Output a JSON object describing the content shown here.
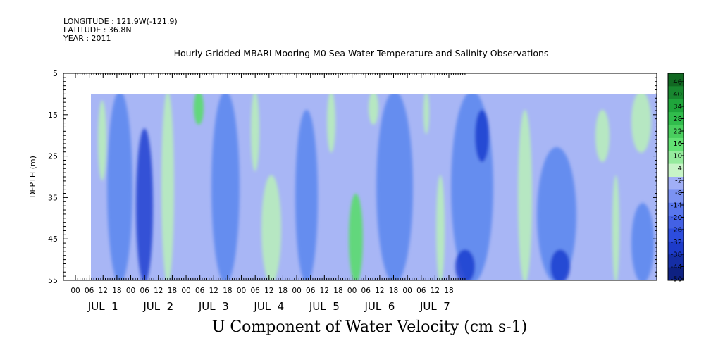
{
  "header": {
    "longitude": "LONGITUDE : 121.9W(-121.9)",
    "latitude": "LATITUDE : 36.8N",
    "year": "YEAR : 2011",
    "title": "Hourly Gridded MBARI Mooring M0 Sea Water Temperature and Salinity Observations"
  },
  "chart_data": {
    "type": "heatmap",
    "title": "Hourly Gridded MBARI Mooring M0 Sea Water Temperature and Salinity Observations",
    "xlabel": "U Component of Water Velocity (cm s-1)",
    "ylabel": "DEPTH (m)",
    "yticks": [
      5,
      15,
      25,
      35,
      45,
      55
    ],
    "ylim": [
      55,
      5
    ],
    "data_depth_range": [
      10,
      55
    ],
    "x_hour_ticks": [
      "00",
      "06",
      "12",
      "18",
      "00",
      "06",
      "12",
      "18",
      "00",
      "06",
      "12",
      "18",
      "00",
      "06",
      "12",
      "18",
      "00",
      "06",
      "12",
      "18",
      "00",
      "06",
      "12",
      "18",
      "00",
      "06",
      "12",
      "18"
    ],
    "x_day_labels": [
      "JUL  1",
      "JUL  2",
      "JUL  3",
      "JUL  4",
      "JUL  5",
      "JUL  6",
      "JUL  7"
    ],
    "colorbar_labels": [
      "46",
      "40",
      "34",
      "28",
      "22",
      "16",
      "10",
      "4",
      "-2",
      "-8",
      "-14",
      "-20",
      "-26",
      "-32",
      "-38",
      "-44",
      "-50"
    ],
    "colors": {
      "strong_negative": "#1c3fd0",
      "negative": "#5b86ee",
      "weak_negative": "#a8b6f5",
      "weak_positive": "#b8f0b8",
      "positive": "#55dd66",
      "strong_positive": "#1c8a2c"
    }
  }
}
